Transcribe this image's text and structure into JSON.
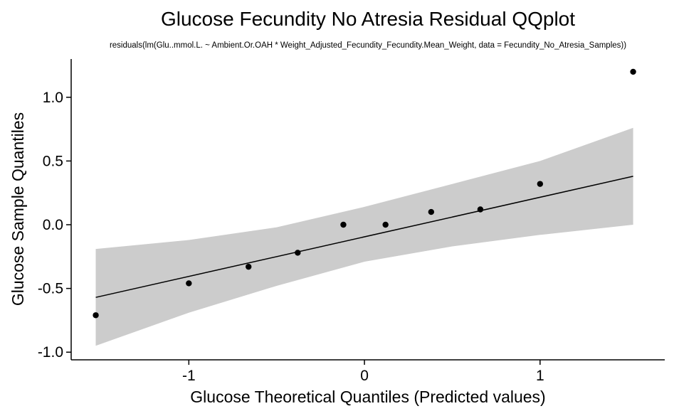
{
  "chart_data": {
    "type": "scatter",
    "title": "Glucose Fecundity No Atresia Residual QQplot",
    "subtitle": "residuals(lm(Glu..mmol.L. ~ Ambient.Or.OAH * Weight_Adjusted_Fecundity_Fecundity.Mean_Weight, data = Fecundity_No_Atresia_Samples))",
    "xlabel": "Glucose Theoretical Quantiles (Predicted values)",
    "ylabel": "Glucose Sample Quantiles",
    "xlim": [
      -1.67,
      1.71
    ],
    "ylim": [
      -1.06,
      1.3
    ],
    "x_ticks": [
      -1,
      0,
      1
    ],
    "x_tick_labels": [
      "-1",
      "0",
      "1"
    ],
    "y_ticks": [
      -1.0,
      -0.5,
      0.0,
      0.5,
      1.0
    ],
    "y_tick_labels": [
      "-1.0",
      "-0.5",
      "0.0",
      "0.5",
      "1.0"
    ],
    "grid": false,
    "points": {
      "x": [
        -1.53,
        -1.0,
        -0.66,
        -0.38,
        -0.12,
        0.12,
        0.38,
        0.66,
        1.0,
        1.53
      ],
      "y": [
        -0.71,
        -0.46,
        -0.33,
        -0.22,
        0.0,
        0.0,
        0.1,
        0.12,
        0.32,
        1.2
      ]
    },
    "reference_line": {
      "x": [
        -1.53,
        1.53
      ],
      "y": [
        -0.57,
        0.38
      ]
    },
    "confidence_band": {
      "x": [
        -1.53,
        -1.0,
        -0.5,
        0.0,
        0.5,
        1.0,
        1.53
      ],
      "lower": [
        -0.95,
        -0.69,
        -0.48,
        -0.29,
        -0.17,
        -0.08,
        0.0
      ],
      "upper": [
        -0.19,
        -0.12,
        -0.02,
        0.14,
        0.32,
        0.5,
        0.76
      ]
    },
    "colors": {
      "points": "#000000",
      "line": "#000000",
      "band": "#cccccc"
    }
  }
}
